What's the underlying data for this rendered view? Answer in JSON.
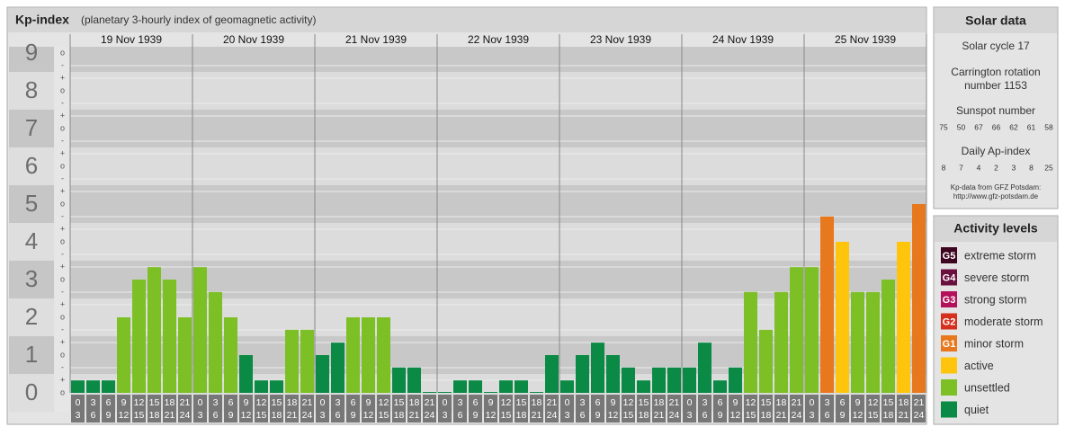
{
  "header": {
    "title": "Kp-index",
    "subtitle": "(planetary 3-hourly index of geomagnetic activity)"
  },
  "chart_data": {
    "type": "bar",
    "days": [
      "19 Nov 1939",
      "20 Nov 1939",
      "21 Nov 1939",
      "22 Nov 1939",
      "23 Nov 1939",
      "24 Nov 1939",
      "25 Nov 1939"
    ],
    "hour_labels": [
      [
        "0",
        "3"
      ],
      [
        "3",
        "6"
      ],
      [
        "6",
        "9"
      ],
      [
        "9",
        "12"
      ],
      [
        "12",
        "15"
      ],
      [
        "15",
        "18"
      ],
      [
        "18",
        "21"
      ],
      [
        "21",
        "24"
      ]
    ],
    "values": [
      0.33,
      0.33,
      0.33,
      2,
      3,
      3.33,
      3,
      2,
      3.33,
      2.67,
      2,
      1,
      0.33,
      0.33,
      1.67,
      1.67,
      1,
      1.33,
      2,
      2,
      2,
      0.67,
      0.67,
      0,
      0,
      0.33,
      0.33,
      0,
      0.33,
      0.33,
      0,
      1,
      0.33,
      1,
      1.33,
      1,
      0.67,
      0.33,
      0.67,
      0.67,
      0.67,
      1.33,
      0.33,
      0.67,
      2.67,
      1.67,
      2.67,
      3.33,
      3.33,
      4.67,
      4,
      2.67,
      2.67,
      3,
      4,
      5
    ],
    "colors": [
      "#0b8a45",
      "#0b8a45",
      "#0b8a45",
      "#7cc026",
      "#7cc026",
      "#7cc026",
      "#7cc026",
      "#7cc026",
      "#7cc026",
      "#7cc026",
      "#7cc026",
      "#0b8a45",
      "#0b8a45",
      "#0b8a45",
      "#7cc026",
      "#7cc026",
      "#0b8a45",
      "#0b8a45",
      "#7cc026",
      "#7cc026",
      "#7cc026",
      "#0b8a45",
      "#0b8a45",
      "#0b8a45",
      "#0b8a45",
      "#0b8a45",
      "#0b8a45",
      "#0b8a45",
      "#0b8a45",
      "#0b8a45",
      "#0b8a45",
      "#0b8a45",
      "#0b8a45",
      "#0b8a45",
      "#0b8a45",
      "#0b8a45",
      "#0b8a45",
      "#0b8a45",
      "#0b8a45",
      "#0b8a45",
      "#0b8a45",
      "#0b8a45",
      "#0b8a45",
      "#0b8a45",
      "#7cc026",
      "#7cc026",
      "#7cc026",
      "#7cc026",
      "#7cc026",
      "#e8781e",
      "#ffc40c",
      "#7cc026",
      "#7cc026",
      "#7cc026",
      "#ffc40c",
      "#e8781e"
    ],
    "ylim": [
      0,
      9
    ],
    "yticks": [
      0,
      1,
      2,
      3,
      4,
      5,
      6,
      7,
      8,
      9
    ],
    "minor_tick_labels": [
      "-",
      "o",
      "+"
    ]
  },
  "solar_data": {
    "title": "Solar data",
    "solar_cycle": "Solar cycle 17",
    "carrington": [
      "Carrington rotation",
      "number 1153"
    ],
    "sunspot_label": "Sunspot number",
    "sunspot_numbers": [
      75,
      50,
      67,
      66,
      62,
      61,
      58
    ],
    "ap_label": "Daily Ap-index",
    "ap_values": [
      8,
      7,
      4,
      2,
      3,
      8,
      25
    ],
    "source": [
      "Kp-data from GFZ Potsdam:",
      "http://www.gfz-potsdam.de"
    ]
  },
  "activity_levels": {
    "title": "Activity levels",
    "items": [
      {
        "badge": "G5",
        "label": "extreme storm",
        "color": "#3e0520"
      },
      {
        "badge": "G4",
        "label": "severe storm",
        "color": "#6b0f3f"
      },
      {
        "badge": "G3",
        "label": "strong storm",
        "color": "#b3125a"
      },
      {
        "badge": "G2",
        "label": "moderate storm",
        "color": "#d4301e"
      },
      {
        "badge": "G1",
        "label": "minor storm",
        "color": "#e8781e"
      },
      {
        "label": "active",
        "color": "#ffc40c"
      },
      {
        "label": "unsettled",
        "color": "#7cc026"
      },
      {
        "label": "quiet",
        "color": "#0b8a45"
      }
    ]
  }
}
